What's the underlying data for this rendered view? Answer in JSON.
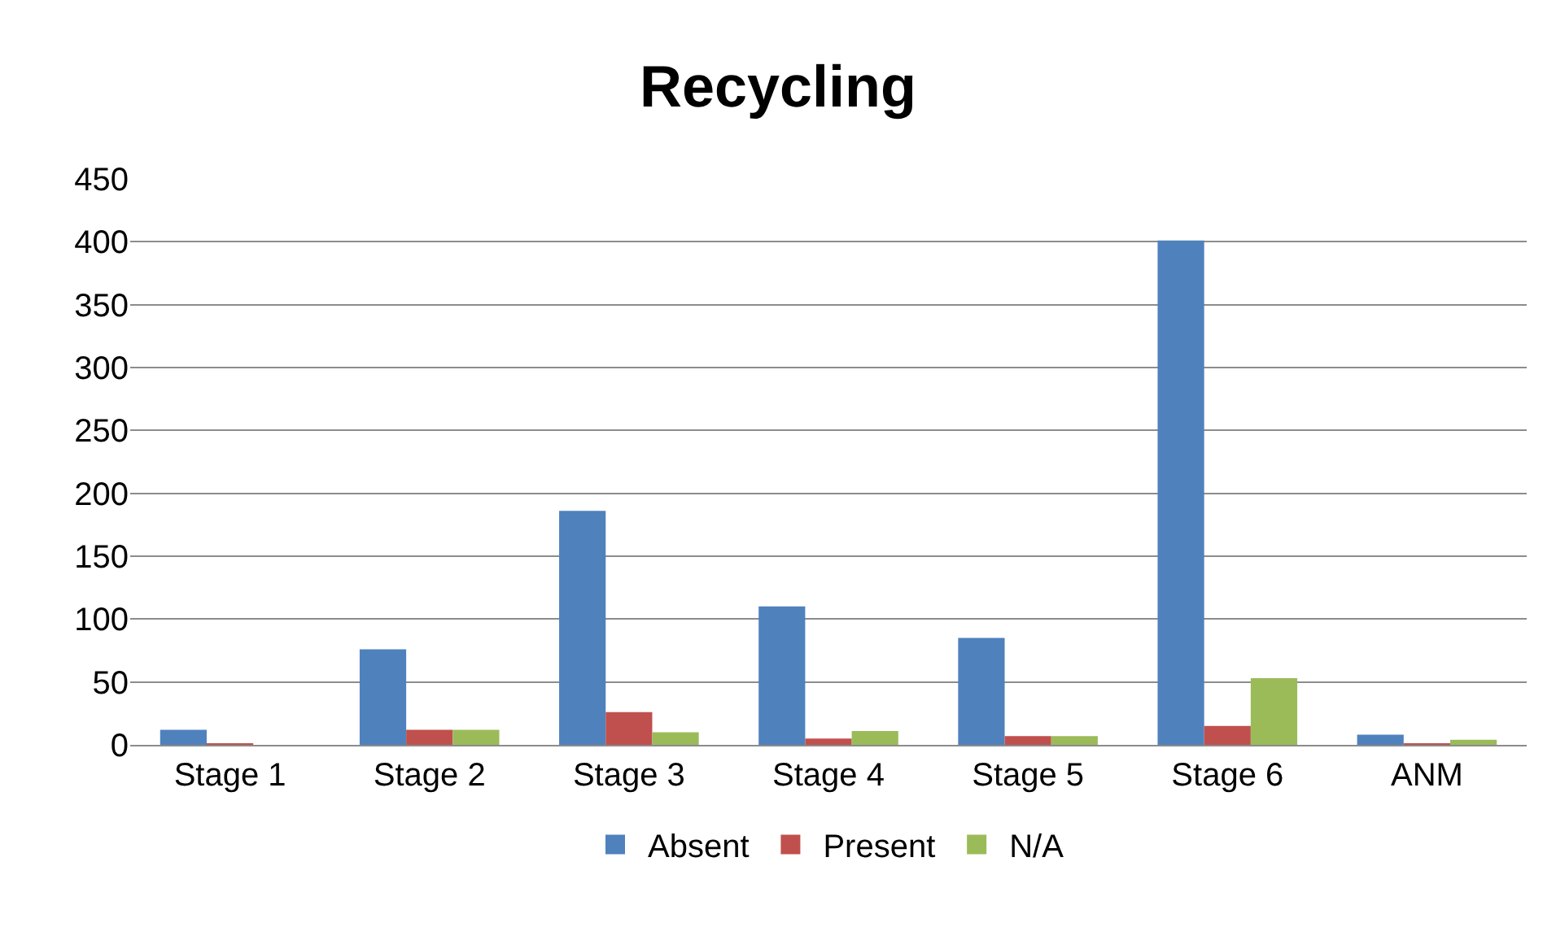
{
  "chart_data": {
    "type": "bar",
    "title": "Recycling",
    "categories": [
      "Stage 1",
      "Stage 2",
      "Stage 3",
      "Stage 4",
      "Stage 5",
      "Stage 6",
      "ANM"
    ],
    "series": [
      {
        "name": "Absent",
        "color": "#4f81bd",
        "values": [
          12,
          76,
          186,
          110,
          85,
          401,
          8
        ]
      },
      {
        "name": "Present",
        "color": "#c0504d",
        "values": [
          1,
          12,
          26,
          5,
          7,
          15,
          1
        ]
      },
      {
        "name": "N/A",
        "color": "#9bbb59",
        "values": [
          0,
          12,
          10,
          11,
          7,
          53,
          4
        ]
      }
    ],
    "ylim": [
      0,
      450
    ],
    "yticks": [
      0,
      50,
      100,
      150,
      200,
      250,
      300,
      350,
      400,
      450
    ],
    "grid": "y",
    "legend": "bottom"
  }
}
